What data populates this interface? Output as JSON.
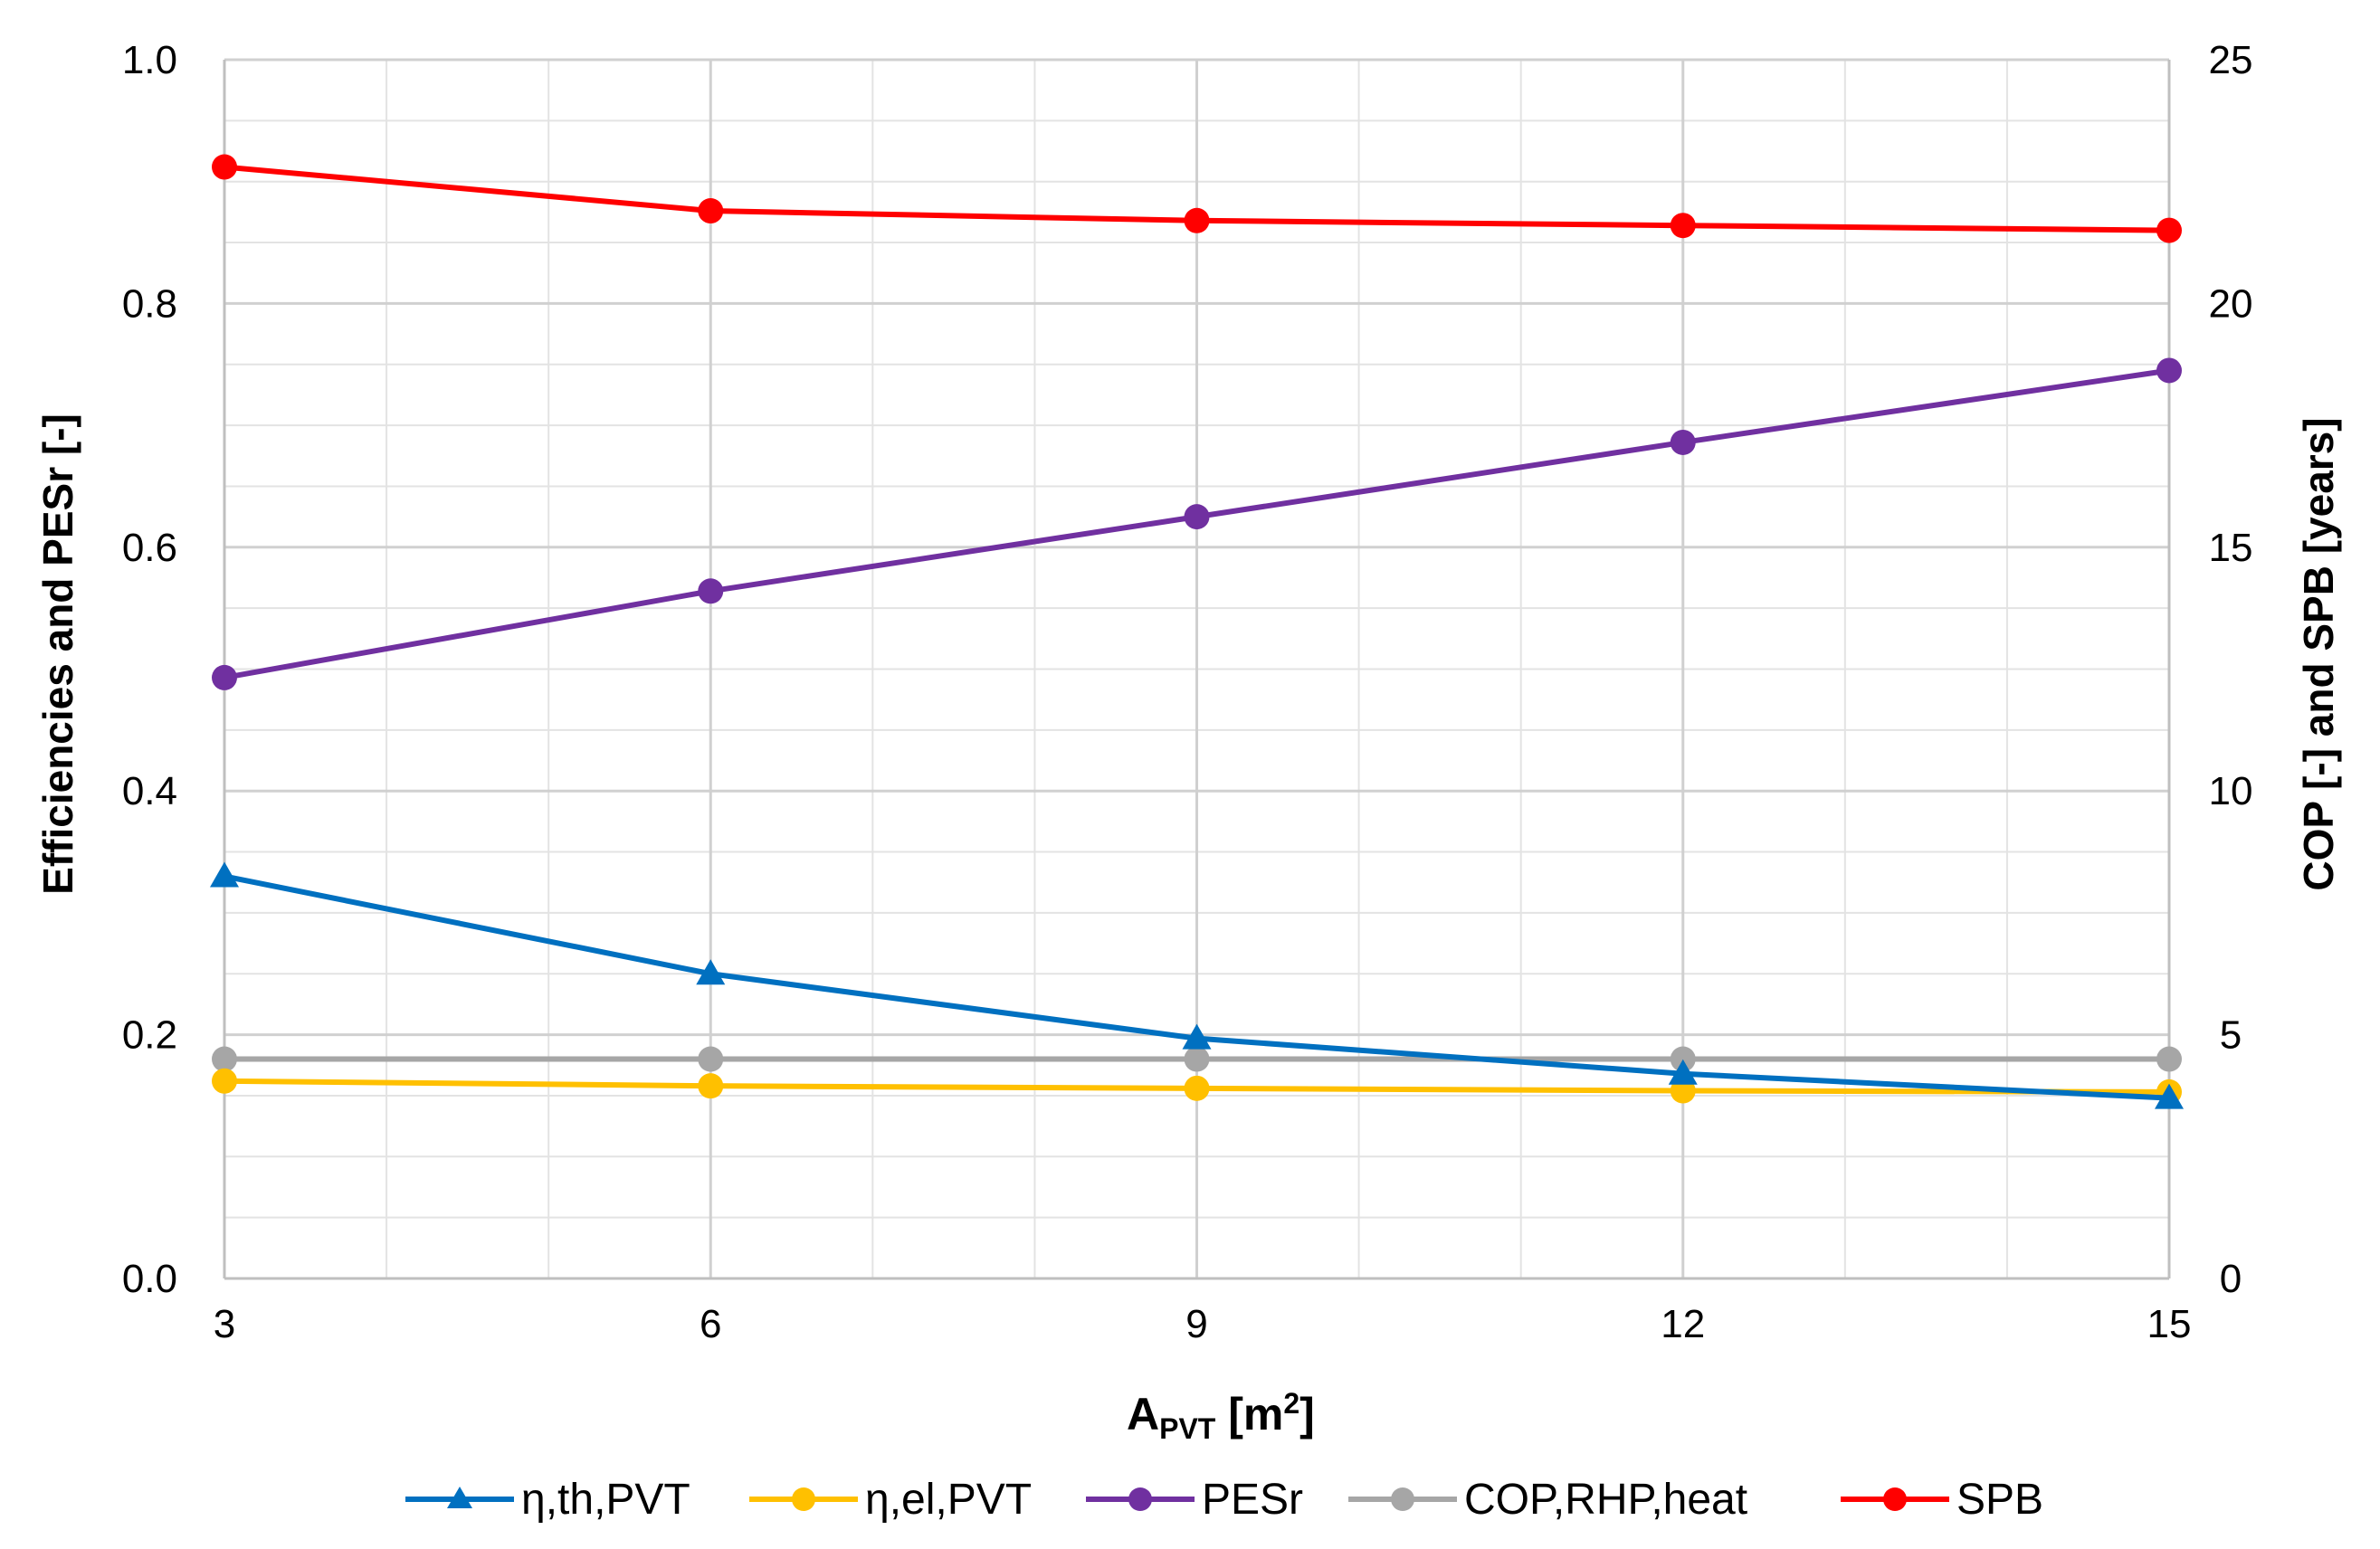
{
  "chart_data": {
    "type": "line",
    "title": "",
    "x": [
      3,
      6,
      9,
      12,
      15
    ],
    "x_ticks": [
      "3",
      "6",
      "9",
      "12",
      "15"
    ],
    "xlim": [
      3,
      15
    ],
    "xlabel_main": "A",
    "xlabel_sub": "PVT",
    "xlabel_unit": " [m",
    "xlabel_sup": "2",
    "xlabel_end": "]",
    "ylabel_left": "Efficiencies and PESr [-]",
    "ylim_left": [
      0,
      1
    ],
    "y_ticks_left": [
      "0.0",
      "0.2",
      "0.4",
      "0.6",
      "0.8",
      "1.0"
    ],
    "ylabel_right": "COP [-] and SPB [years]",
    "ylim_right": [
      0,
      25
    ],
    "y_ticks_right": [
      "0",
      "5",
      "10",
      "15",
      "20",
      "25"
    ],
    "grid": true,
    "legend_position": "bottom",
    "series": [
      {
        "name": "η,th,PVT",
        "axis": "left",
        "marker": "triangle",
        "color": "#0070C0",
        "values": [
          0.33,
          0.25,
          0.197,
          0.168,
          0.148
        ]
      },
      {
        "name": "η,el,PVT",
        "axis": "left",
        "marker": "circle",
        "color": "#FFC000",
        "values": [
          0.162,
          0.158,
          0.156,
          0.154,
          0.153
        ]
      },
      {
        "name": "PESr",
        "axis": "left",
        "marker": "circle",
        "color": "#7030A0",
        "values": [
          0.493,
          0.564,
          0.625,
          0.686,
          0.745
        ]
      },
      {
        "name": "COP,RHP,heat",
        "axis": "right",
        "marker": "circle",
        "color": "#A6A6A6",
        "values": [
          4.5,
          4.5,
          4.5,
          4.5,
          4.5
        ]
      },
      {
        "name": "SPB",
        "axis": "right",
        "marker": "circle",
        "color": "#FF0000",
        "values": [
          22.8,
          21.9,
          21.7,
          21.6,
          21.5
        ]
      }
    ]
  }
}
